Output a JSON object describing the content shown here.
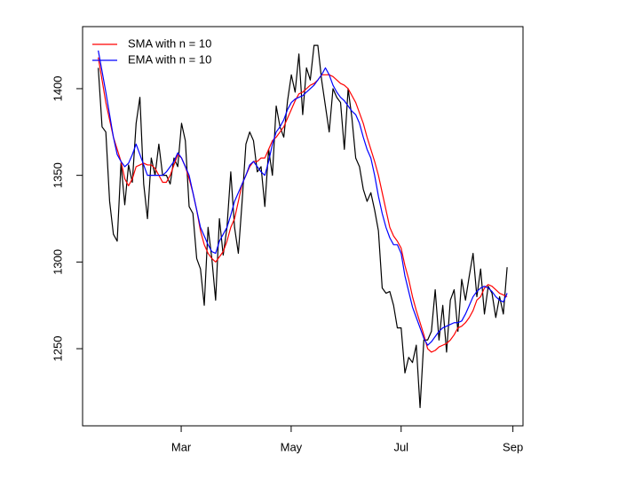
{
  "chart_data": {
    "type": "line",
    "x": [
      15,
      17.1,
      19.2,
      21.3,
      23.4,
      25.5,
      27.6,
      29.7,
      31.8,
      33.9,
      36,
      38.1,
      40.2,
      42.3,
      44.4,
      46.5,
      48.6,
      50.7,
      52.8,
      54.9,
      57,
      59.1,
      61.2,
      63.3,
      65.4,
      67.5,
      69.6,
      71.7,
      73.8,
      75.9,
      78,
      80.1,
      82.2,
      84.3,
      86.4,
      88.5,
      90.6,
      92.7,
      94.8,
      96.9,
      99,
      101.1,
      103.2,
      105.3,
      107.4,
      109.5,
      111.6,
      113.7,
      115.8,
      117.9,
      120,
      122.1,
      124.2,
      126.3,
      128.4,
      130.5,
      132.6,
      134.7,
      136.8,
      138.9,
      141,
      143.1,
      145.2,
      147.3,
      149.4,
      151.5,
      153.6,
      155.7,
      157.8,
      159.9,
      162,
      164.1,
      166.2,
      168.3,
      170.4,
      172.5,
      174.6,
      176.7,
      178.8,
      180.9,
      183,
      185.1,
      187.2,
      189.3,
      191.4,
      193.5,
      195.6,
      197.7,
      199.8,
      201.9,
      204,
      206.1,
      208.2,
      210.3,
      212.4,
      214.5,
      216.6,
      218.7,
      220.8,
      222.9,
      225,
      227.1,
      229.2,
      231.3,
      233.4,
      235.5,
      237.6,
      239.7,
      241.8
    ],
    "series": [
      {
        "color": "#000000",
        "values": [
          1412,
          1378,
          1375,
          1335,
          1316,
          1312,
          1357,
          1333,
          1356,
          1346,
          1380,
          1395,
          1345,
          1325,
          1360,
          1350,
          1368,
          1350,
          1350,
          1345,
          1360,
          1355,
          1380,
          1370,
          1332,
          1328,
          1302,
          1296,
          1275,
          1320,
          1302,
          1278,
          1325,
          1304,
          1320,
          1352,
          1320,
          1305,
          1335,
          1368,
          1375,
          1370,
          1352,
          1355,
          1332,
          1365,
          1350,
          1390,
          1378,
          1372,
          1393,
          1408,
          1398,
          1420,
          1385,
          1412,
          1405,
          1425,
          1425,
          1405,
          1390,
          1375,
          1400,
          1395,
          1392,
          1365,
          1400,
          1383,
          1360,
          1355,
          1342,
          1335,
          1340,
          1330,
          1318,
          1285,
          1282,
          1283,
          1275,
          1262,
          1262,
          1236,
          1245,
          1242,
          1252,
          1216,
          1255,
          1255,
          1260,
          1284,
          1255,
          1275,
          1248,
          1278,
          1284,
          1260,
          1290,
          1278,
          1292,
          1305,
          1280,
          1296,
          1270,
          1286,
          1282,
          1268,
          1280,
          1270,
          1297
        ]
      },
      {
        "name": "SMA with n = 10",
        "color": "#ff0000",
        "values": [
          1418,
          1405,
          1392,
          1382,
          1372,
          1365,
          1358,
          1348,
          1344,
          1348,
          1355,
          1356,
          1357,
          1356,
          1356,
          1354,
          1350,
          1346,
          1346,
          1350,
          1356,
          1362,
          1360,
          1355,
          1348,
          1340,
          1330,
          1318,
          1310,
          1305,
          1302,
          1300,
          1303,
          1306,
          1312,
          1320,
          1325,
          1335,
          1345,
          1350,
          1355,
          1358,
          1358,
          1360,
          1360,
          1365,
          1370,
          1372,
          1375,
          1378,
          1383,
          1388,
          1393,
          1397,
          1398,
          1400,
          1402,
          1403,
          1405,
          1408,
          1408,
          1408,
          1407,
          1405,
          1403,
          1402,
          1400,
          1396,
          1392,
          1386,
          1380,
          1372,
          1365,
          1358,
          1350,
          1340,
          1330,
          1320,
          1315,
          1312,
          1308,
          1298,
          1290,
          1280,
          1272,
          1265,
          1258,
          1250,
          1248,
          1249,
          1251,
          1252,
          1253,
          1255,
          1258,
          1262,
          1263,
          1265,
          1268,
          1272,
          1278,
          1280,
          1285,
          1287,
          1286,
          1284,
          1282,
          1281,
          1280
        ]
      },
      {
        "name": "EMA with n = 10",
        "color": "#0000ff",
        "values": [
          1422,
          1410,
          1398,
          1385,
          1372,
          1362,
          1358,
          1355,
          1357,
          1362,
          1368,
          1362,
          1356,
          1350,
          1350,
          1350,
          1350,
          1350,
          1352,
          1355,
          1358,
          1363,
          1360,
          1355,
          1350,
          1340,
          1330,
          1320,
          1315,
          1310,
          1306,
          1305,
          1312,
          1316,
          1320,
          1327,
          1335,
          1340,
          1345,
          1350,
          1356,
          1358,
          1355,
          1352,
          1350,
          1358,
          1368,
          1375,
          1378,
          1382,
          1388,
          1392,
          1394,
          1395,
          1396,
          1398,
          1400,
          1402,
          1405,
          1408,
          1412,
          1408,
          1402,
          1398,
          1395,
          1393,
          1390,
          1387,
          1385,
          1380,
          1372,
          1365,
          1360,
          1350,
          1338,
          1328,
          1320,
          1314,
          1310,
          1310,
          1305,
          1292,
          1283,
          1274,
          1268,
          1262,
          1256,
          1252,
          1254,
          1257,
          1260,
          1262,
          1263,
          1264,
          1265,
          1265,
          1266,
          1270,
          1275,
          1280,
          1283,
          1285,
          1286,
          1285,
          1283,
          1280,
          1278,
          1277,
          1282
        ]
      }
    ],
    "xlim": [
      6.3,
      250.6
    ],
    "xticks": [
      {
        "value": 61,
        "label": "Mar"
      },
      {
        "value": 122,
        "label": "May"
      },
      {
        "value": 183,
        "label": "Jul"
      },
      {
        "value": 245,
        "label": "Sep"
      }
    ],
    "ylim": [
      1205.5,
      1435.8
    ],
    "yticks": [
      1250,
      1300,
      1350,
      1400
    ],
    "legend": "top-left"
  }
}
